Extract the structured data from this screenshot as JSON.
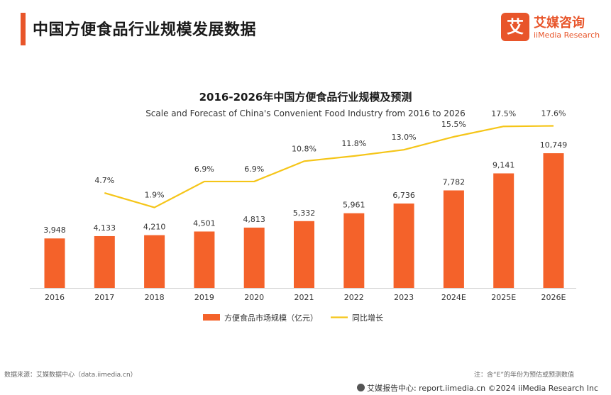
{
  "header": {
    "title": "中国方便食品行业规模发展数据"
  },
  "logo": {
    "mark": "艾",
    "cn": "艾媒咨询",
    "en": "iiMedia Research"
  },
  "chart_data": {
    "type": "bar",
    "title": "2016-2026年中国方便食品行业规模及预测",
    "subtitle": "Scale and Forecast of China's Convenient Food Industry from 2016 to 2026",
    "categories": [
      "2016",
      "2017",
      "2018",
      "2019",
      "2020",
      "2021",
      "2022",
      "2023",
      "2024E",
      "2025E",
      "2026E"
    ],
    "series": [
      {
        "name": "方便食品市场规模（亿元）",
        "type": "bar",
        "color": "#f4622a",
        "values": [
          3948,
          4133,
          4210,
          4501,
          4813,
          5332,
          5961,
          6736,
          7782,
          9141,
          10749
        ],
        "labels": [
          "3,948",
          "4,133",
          "4,210",
          "4,501",
          "4,813",
          "5,332",
          "5,961",
          "6,736",
          "7,782",
          "9,141",
          "10,749"
        ]
      },
      {
        "name": "同比增长",
        "type": "line",
        "color": "#f5c518",
        "values": [
          null,
          4.7,
          1.9,
          6.9,
          6.9,
          10.8,
          11.8,
          13.0,
          15.5,
          17.5,
          17.6
        ],
        "labels": [
          "",
          "4.7%",
          "1.9%",
          "6.9%",
          "6.9%",
          "10.8%",
          "11.8%",
          "13.0%",
          "15.5%",
          "17.5%",
          "17.6%"
        ]
      }
    ],
    "legend": "bottom-center",
    "grid": false
  },
  "footer": {
    "source": "数据来源：艾媒数据中心（data.iimedia.cn）",
    "note": "注：含“E”的年份为预估或预测数值",
    "brand": "艾媒报告中心: report.iimedia.cn    ©2024  iiMedia Research Inc"
  }
}
